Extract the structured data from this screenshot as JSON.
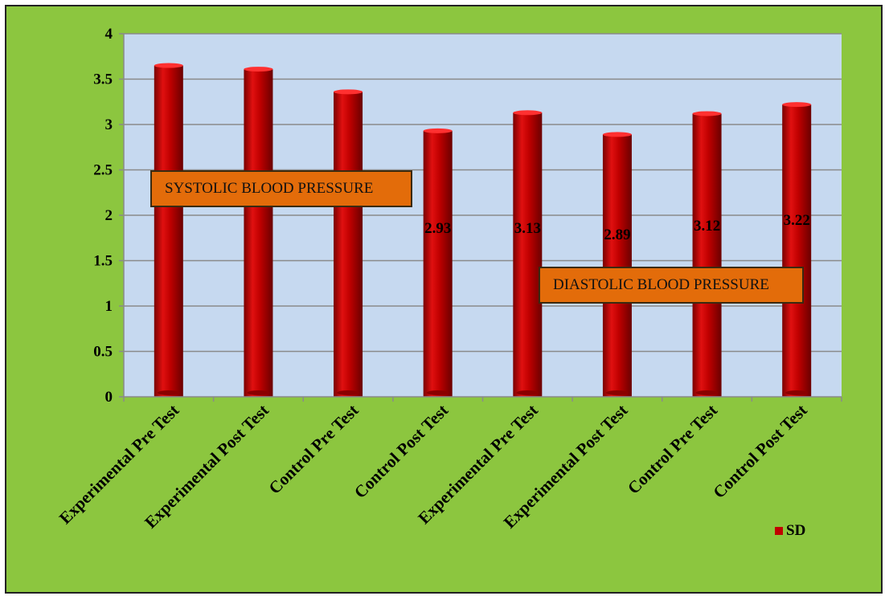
{
  "chart_data": {
    "type": "bar",
    "categories": [
      "Experimental Pre Test",
      "Experimental Post Test",
      "Control Pre Test",
      "Control Post Test",
      "Experimental Pre Test",
      "Experimental Post Test",
      "Control Pre Test",
      "Control Post Test"
    ],
    "series": [
      {
        "name": "SD",
        "values": [
          3.65,
          3.61,
          3.36,
          2.93,
          3.13,
          2.89,
          3.12,
          3.22
        ],
        "color": "#c00000"
      }
    ],
    "data_labels": [
      "",
      "",
      "",
      "2.93",
      "3.13",
      "2.89",
      "3.12",
      "3.22"
    ],
    "ylim": [
      0,
      4
    ],
    "yticks": [
      "0",
      "0.5",
      "1",
      "1.5",
      "2",
      "2.5",
      "3",
      "3.5",
      "4"
    ],
    "grid": true,
    "legend": "bottom-right",
    "annotations": [
      "SYSTOLIC BLOOD PRESSURE",
      "DIASTOLIC BLOOD PRESSURE"
    ],
    "colors": {
      "background": "#8cc63f",
      "plot_area": "#c6d9f0",
      "bar": "#c00000"
    }
  }
}
